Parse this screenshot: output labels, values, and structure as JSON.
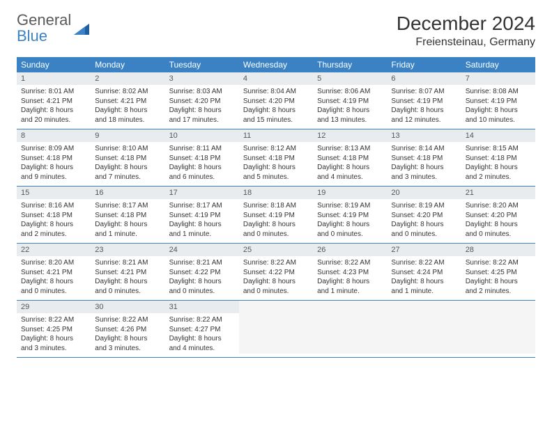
{
  "logo": {
    "general": "General",
    "blue": "Blue"
  },
  "title": "December 2024",
  "location": "Freiensteinau, Germany",
  "colors": {
    "header_bg": "#3b82c4",
    "header_text": "#ffffff",
    "daynum_bg": "#e9ecef",
    "border": "#3b82c4",
    "body_bg": "#ffffff",
    "text": "#333333"
  },
  "typography": {
    "title_fontsize": 28,
    "location_fontsize": 16,
    "dayheader_fontsize": 12,
    "body_fontsize": 10
  },
  "calendar": {
    "day_headers": [
      "Sunday",
      "Monday",
      "Tuesday",
      "Wednesday",
      "Thursday",
      "Friday",
      "Saturday"
    ],
    "weeks": [
      [
        {
          "num": "1",
          "sunrise": "Sunrise: 8:01 AM",
          "sunset": "Sunset: 4:21 PM",
          "daylight": "Daylight: 8 hours and 20 minutes."
        },
        {
          "num": "2",
          "sunrise": "Sunrise: 8:02 AM",
          "sunset": "Sunset: 4:21 PM",
          "daylight": "Daylight: 8 hours and 18 minutes."
        },
        {
          "num": "3",
          "sunrise": "Sunrise: 8:03 AM",
          "sunset": "Sunset: 4:20 PM",
          "daylight": "Daylight: 8 hours and 17 minutes."
        },
        {
          "num": "4",
          "sunrise": "Sunrise: 8:04 AM",
          "sunset": "Sunset: 4:20 PM",
          "daylight": "Daylight: 8 hours and 15 minutes."
        },
        {
          "num": "5",
          "sunrise": "Sunrise: 8:06 AM",
          "sunset": "Sunset: 4:19 PM",
          "daylight": "Daylight: 8 hours and 13 minutes."
        },
        {
          "num": "6",
          "sunrise": "Sunrise: 8:07 AM",
          "sunset": "Sunset: 4:19 PM",
          "daylight": "Daylight: 8 hours and 12 minutes."
        },
        {
          "num": "7",
          "sunrise": "Sunrise: 8:08 AM",
          "sunset": "Sunset: 4:19 PM",
          "daylight": "Daylight: 8 hours and 10 minutes."
        }
      ],
      [
        {
          "num": "8",
          "sunrise": "Sunrise: 8:09 AM",
          "sunset": "Sunset: 4:18 PM",
          "daylight": "Daylight: 8 hours and 9 minutes."
        },
        {
          "num": "9",
          "sunrise": "Sunrise: 8:10 AM",
          "sunset": "Sunset: 4:18 PM",
          "daylight": "Daylight: 8 hours and 7 minutes."
        },
        {
          "num": "10",
          "sunrise": "Sunrise: 8:11 AM",
          "sunset": "Sunset: 4:18 PM",
          "daylight": "Daylight: 8 hours and 6 minutes."
        },
        {
          "num": "11",
          "sunrise": "Sunrise: 8:12 AM",
          "sunset": "Sunset: 4:18 PM",
          "daylight": "Daylight: 8 hours and 5 minutes."
        },
        {
          "num": "12",
          "sunrise": "Sunrise: 8:13 AM",
          "sunset": "Sunset: 4:18 PM",
          "daylight": "Daylight: 8 hours and 4 minutes."
        },
        {
          "num": "13",
          "sunrise": "Sunrise: 8:14 AM",
          "sunset": "Sunset: 4:18 PM",
          "daylight": "Daylight: 8 hours and 3 minutes."
        },
        {
          "num": "14",
          "sunrise": "Sunrise: 8:15 AM",
          "sunset": "Sunset: 4:18 PM",
          "daylight": "Daylight: 8 hours and 2 minutes."
        }
      ],
      [
        {
          "num": "15",
          "sunrise": "Sunrise: 8:16 AM",
          "sunset": "Sunset: 4:18 PM",
          "daylight": "Daylight: 8 hours and 2 minutes."
        },
        {
          "num": "16",
          "sunrise": "Sunrise: 8:17 AM",
          "sunset": "Sunset: 4:18 PM",
          "daylight": "Daylight: 8 hours and 1 minute."
        },
        {
          "num": "17",
          "sunrise": "Sunrise: 8:17 AM",
          "sunset": "Sunset: 4:19 PM",
          "daylight": "Daylight: 8 hours and 1 minute."
        },
        {
          "num": "18",
          "sunrise": "Sunrise: 8:18 AM",
          "sunset": "Sunset: 4:19 PM",
          "daylight": "Daylight: 8 hours and 0 minutes."
        },
        {
          "num": "19",
          "sunrise": "Sunrise: 8:19 AM",
          "sunset": "Sunset: 4:19 PM",
          "daylight": "Daylight: 8 hours and 0 minutes."
        },
        {
          "num": "20",
          "sunrise": "Sunrise: 8:19 AM",
          "sunset": "Sunset: 4:20 PM",
          "daylight": "Daylight: 8 hours and 0 minutes."
        },
        {
          "num": "21",
          "sunrise": "Sunrise: 8:20 AM",
          "sunset": "Sunset: 4:20 PM",
          "daylight": "Daylight: 8 hours and 0 minutes."
        }
      ],
      [
        {
          "num": "22",
          "sunrise": "Sunrise: 8:20 AM",
          "sunset": "Sunset: 4:21 PM",
          "daylight": "Daylight: 8 hours and 0 minutes."
        },
        {
          "num": "23",
          "sunrise": "Sunrise: 8:21 AM",
          "sunset": "Sunset: 4:21 PM",
          "daylight": "Daylight: 8 hours and 0 minutes."
        },
        {
          "num": "24",
          "sunrise": "Sunrise: 8:21 AM",
          "sunset": "Sunset: 4:22 PM",
          "daylight": "Daylight: 8 hours and 0 minutes."
        },
        {
          "num": "25",
          "sunrise": "Sunrise: 8:22 AM",
          "sunset": "Sunset: 4:22 PM",
          "daylight": "Daylight: 8 hours and 0 minutes."
        },
        {
          "num": "26",
          "sunrise": "Sunrise: 8:22 AM",
          "sunset": "Sunset: 4:23 PM",
          "daylight": "Daylight: 8 hours and 1 minute."
        },
        {
          "num": "27",
          "sunrise": "Sunrise: 8:22 AM",
          "sunset": "Sunset: 4:24 PM",
          "daylight": "Daylight: 8 hours and 1 minute."
        },
        {
          "num": "28",
          "sunrise": "Sunrise: 8:22 AM",
          "sunset": "Sunset: 4:25 PM",
          "daylight": "Daylight: 8 hours and 2 minutes."
        }
      ],
      [
        {
          "num": "29",
          "sunrise": "Sunrise: 8:22 AM",
          "sunset": "Sunset: 4:25 PM",
          "daylight": "Daylight: 8 hours and 3 minutes."
        },
        {
          "num": "30",
          "sunrise": "Sunrise: 8:22 AM",
          "sunset": "Sunset: 4:26 PM",
          "daylight": "Daylight: 8 hours and 3 minutes."
        },
        {
          "num": "31",
          "sunrise": "Sunrise: 8:22 AM",
          "sunset": "Sunset: 4:27 PM",
          "daylight": "Daylight: 8 hours and 4 minutes."
        },
        {
          "empty": true
        },
        {
          "empty": true
        },
        {
          "empty": true
        },
        {
          "empty": true
        }
      ]
    ]
  }
}
